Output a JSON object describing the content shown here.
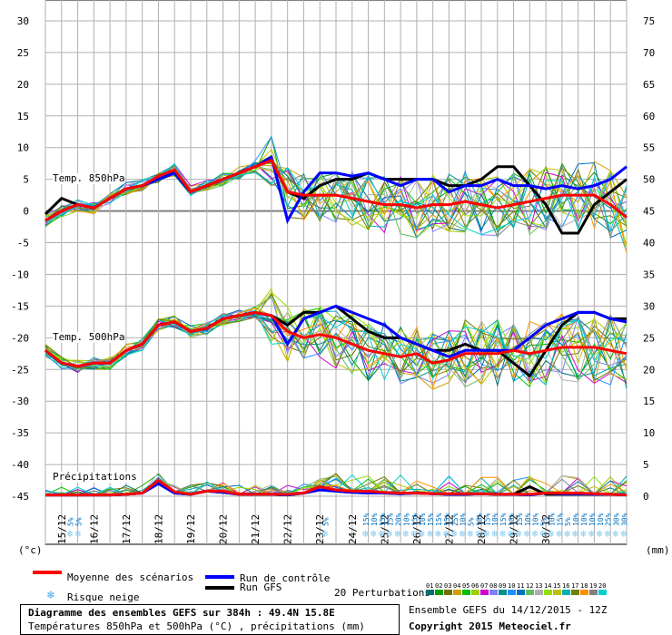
{
  "chart_data": {
    "type": "line",
    "title": "Diagramme des ensembles GEFS sur 384h : 49.4N 15.8E",
    "subtitle": "Températures 850hPa et 500hPa (°C) , précipitations (mm)",
    "left_axis_unit": "(°c)",
    "right_axis_unit": "(mm)",
    "left_ticks": [
      30,
      25,
      20,
      15,
      10,
      5,
      0,
      -5,
      -10,
      -15,
      -20,
      -25,
      -30,
      -35,
      -40,
      -45
    ],
    "right_ticks": [
      75,
      70,
      65,
      60,
      55,
      50,
      45,
      40,
      35,
      30,
      25,
      20,
      15,
      10,
      5,
      0
    ],
    "ylim": [
      -45,
      30
    ],
    "right_ylim": [
      0,
      75
    ],
    "x_labels": [
      "15/12",
      "16/12",
      "17/12",
      "18/12",
      "19/12",
      "20/12",
      "21/12",
      "22/12",
      "23/12",
      "24/12",
      "25/12",
      "26/12",
      "27/12",
      "28/12",
      "29/12",
      "30/12"
    ],
    "section_labels": [
      "Temp. 850hPa",
      "Temp. 500hPa",
      "Précipitations"
    ],
    "series": [
      {
        "name": "Moyenne des scénarios",
        "color": "#ff0000",
        "t850": [
          -1.5,
          0,
          1,
          0.5,
          2,
          3.5,
          4,
          5.5,
          6.5,
          3,
          4,
          5,
          6,
          7,
          8,
          3,
          2.5,
          2.5,
          2.5,
          2,
          1.5,
          1,
          1,
          0.5,
          1,
          1,
          1.5,
          1,
          0.5,
          1,
          1.5,
          2,
          2.5,
          2.5,
          2.5,
          1,
          -1
        ],
        "t500": [
          -22,
          -24,
          -24.5,
          -24,
          -24,
          -22,
          -21,
          -18,
          -17.5,
          -19,
          -18.5,
          -17,
          -16.5,
          -16,
          -16.5,
          -19,
          -20,
          -19.5,
          -20,
          -21,
          -22,
          -22.5,
          -23,
          -22.5,
          -24,
          -23.5,
          -22.5,
          -22.5,
          -22.5,
          -22,
          -22.5,
          -22,
          -21.5,
          -21.5,
          -21.5,
          -22,
          -22.5
        ],
        "precip": [
          0.2,
          0.2,
          0.2,
          0.2,
          0.2,
          0.3,
          0.5,
          2.5,
          0.7,
          0.3,
          0.8,
          0.8,
          0.3,
          0.3,
          0.3,
          0.3,
          0.5,
          1.5,
          1,
          0.8,
          0.8,
          0.6,
          0.5,
          0.5,
          0.4,
          0.4,
          0.4,
          0.4,
          0.3,
          0.3,
          0.3,
          0.5,
          0.5,
          0.5,
          0.4,
          0.3,
          0.2
        ]
      },
      {
        "name": "Run de contrôle",
        "color": "#0000ff",
        "t850": [
          -1.5,
          0,
          1,
          0.5,
          2,
          3.5,
          4,
          5,
          6,
          3,
          4,
          5,
          6,
          7,
          8.5,
          -1.5,
          3,
          6,
          6,
          5.5,
          6,
          5,
          4,
          5,
          5,
          3,
          4,
          4,
          5,
          4,
          4,
          3.5,
          4,
          3.5,
          4,
          5,
          7
        ],
        "t500": [
          -22,
          -24,
          -24.5,
          -24,
          -24,
          -22,
          -21,
          -18,
          -17.5,
          -19,
          -18.5,
          -17,
          -16.5,
          -16,
          -16.5,
          -21,
          -17,
          -16,
          -15,
          -16,
          -17,
          -18,
          -20,
          -21,
          -22,
          -23,
          -22,
          -22,
          -22,
          -22,
          -20,
          -18,
          -17,
          -16,
          -16,
          -17,
          -17.5
        ],
        "precip": [
          0.2,
          0.2,
          0.2,
          0.2,
          0.2,
          0.3,
          0.5,
          2,
          0.5,
          0.3,
          0.8,
          0.6,
          0.3,
          0.3,
          0.3,
          0.2,
          0.5,
          1,
          0.8,
          0.6,
          0.5,
          0.5,
          0.4,
          0.5,
          0.4,
          0.3,
          0.3,
          0.4,
          0.3,
          0.3,
          0.2,
          0.5,
          0.4,
          0.4,
          0.3,
          0.3,
          0.2
        ]
      },
      {
        "name": "Run GFS",
        "color": "#000000",
        "t850": [
          -0.5,
          2,
          1,
          0.5,
          2,
          3.5,
          4,
          5,
          6,
          3,
          4,
          5,
          6,
          7,
          8,
          3,
          2,
          4,
          5,
          5,
          6,
          5,
          5,
          5,
          5,
          4,
          4,
          5,
          7,
          7,
          4,
          1,
          -3.5,
          -3.5,
          1,
          3,
          5
        ],
        "t500": [
          -22,
          -24,
          -24.5,
          -24,
          -24,
          -22,
          -21,
          -18,
          -17.5,
          -19,
          -18.5,
          -17,
          -16.5,
          -16,
          -16.5,
          -18,
          -16,
          -16,
          -15,
          -17,
          -19,
          -20,
          -20,
          -21,
          -22,
          -22,
          -21,
          -22,
          -22,
          -24,
          -26,
          -22,
          -18,
          -16,
          -16,
          -17,
          -17
        ],
        "precip": [
          0.2,
          0.2,
          0.2,
          0.2,
          0.2,
          0.3,
          0.5,
          2,
          0.5,
          0.3,
          0.8,
          0.6,
          0.3,
          0.3,
          0.3,
          0.2,
          0.5,
          1,
          0.8,
          0.6,
          0.5,
          0.5,
          0.4,
          0.5,
          0.4,
          0.3,
          0.3,
          0.4,
          0.3,
          0.3,
          1.5,
          0.3,
          0.3,
          0.3,
          0.3,
          0.3,
          0.2
        ]
      }
    ],
    "snow_risk": [
      {
        "x_index": 1.5,
        "label": "5%"
      },
      {
        "x_index": 2.0,
        "label": "5%"
      },
      {
        "x_index": 17.3,
        "label": "5%"
      },
      {
        "x_index": 19.8,
        "label": "15%"
      },
      {
        "x_index": 20.3,
        "label": "10%"
      },
      {
        "x_index": 20.8,
        "label": "15%"
      },
      {
        "x_index": 21.3,
        "label": "15%"
      },
      {
        "x_index": 21.8,
        "label": "20%"
      },
      {
        "x_index": 22.3,
        "label": "10%"
      },
      {
        "x_index": 22.8,
        "label": "15%"
      },
      {
        "x_index": 23.3,
        "label": "10%"
      },
      {
        "x_index": 23.8,
        "label": "15%"
      },
      {
        "x_index": 24.3,
        "label": "15%"
      },
      {
        "x_index": 24.8,
        "label": "15%"
      },
      {
        "x_index": 25.3,
        "label": "25%"
      },
      {
        "x_index": 25.8,
        "label": "10%"
      },
      {
        "x_index": 26.3,
        "label": "5%"
      },
      {
        "x_index": 26.8,
        "label": "10%"
      },
      {
        "x_index": 27.3,
        "label": "15%"
      },
      {
        "x_index": 27.8,
        "label": "10%"
      },
      {
        "x_index": 28.3,
        "label": "15%"
      },
      {
        "x_index": 28.8,
        "label": "10%"
      },
      {
        "x_index": 29.3,
        "label": "15%"
      },
      {
        "x_index": 29.8,
        "label": "10%"
      },
      {
        "x_index": 30.3,
        "label": "10%"
      },
      {
        "x_index": 30.8,
        "label": "5%"
      },
      {
        "x_index": 31.3,
        "label": "10%"
      },
      {
        "x_index": 31.8,
        "label": "15%"
      },
      {
        "x_index": 32.3,
        "label": "5%"
      },
      {
        "x_index": 32.8,
        "label": "10%"
      },
      {
        "x_index": 33.3,
        "label": "10%"
      },
      {
        "x_index": 33.8,
        "label": "10%"
      },
      {
        "x_index": 34.3,
        "label": "10%"
      },
      {
        "x_index": 34.8,
        "label": "25%"
      },
      {
        "x_index": 35.3,
        "label": "30%"
      },
      {
        "x_index": 35.8,
        "label": "30%"
      }
    ],
    "perturbation_colors": [
      "#007070",
      "#00a000",
      "#707000",
      "#d0a000",
      "#00c000",
      "#a0d000",
      "#d000d0",
      "#8080ff",
      "#009090",
      "#2090ff",
      "#0070c0",
      "#60c060",
      "#b0b0b0",
      "#90e000",
      "#c0c000",
      "#00b0b0",
      "#708000",
      "#ff9000",
      "#808080",
      "#00d0d0"
    ],
    "grid": true
  },
  "legend": {
    "mean_label": "Moyenne des scénarios",
    "control_label": "Run de contrôle",
    "gfs_label": "Run GFS",
    "snow_label": "Risque neige",
    "pert_label": "20 Perturbations",
    "pert_numbers": [
      "01",
      "02",
      "03",
      "04",
      "05",
      "06",
      "07",
      "08",
      "09",
      "10",
      "11",
      "12",
      "13",
      "14",
      "15",
      "16",
      "17",
      "18",
      "19",
      "20"
    ]
  },
  "footer": {
    "title": "Diagramme des ensembles GEFS sur 384h : 49.4N 15.8E",
    "subtitle": "Températures 850hPa et 500hPa (°C) , précipitations (mm)",
    "ensemble": "Ensemble GEFS du 14/12/2015 - 12Z",
    "copyright": "Copyright 2015 Meteociel.fr"
  },
  "colors": {
    "mean": "#ff0000",
    "control": "#0000ff",
    "gfs": "#000000",
    "grid": "#b0b0b0",
    "snow": "#80c8f0"
  }
}
